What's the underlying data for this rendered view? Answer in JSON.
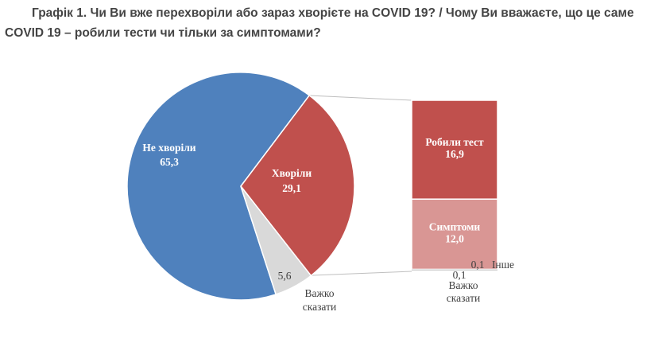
{
  "chart_data": {
    "type": "pie",
    "title": "Графік 1.  Чи Ви вже перехворіли або зараз хворієте на COVID 19? / Чому Ви вважаєте, що це саме COVID 19 – робили тести чи тільки за симптомами?",
    "categories": [
      "Не хворіли",
      "Хворіли",
      "Важко сказати"
    ],
    "values": [
      65.3,
      29.1,
      5.6
    ],
    "value_labels": [
      "65,3",
      "29,1",
      "5,6"
    ],
    "colors": [
      "#4f81bd",
      "#c0504d",
      "#d9d9d9"
    ],
    "breakdown": {
      "categories": [
        "Робили тест",
        "Симптоми",
        "Важко сказати",
        "Інше"
      ],
      "values": [
        16.9,
        12.0,
        0.1,
        0.1
      ],
      "value_labels": [
        "16,9",
        "12,0",
        "0,1",
        "0,1"
      ],
      "colors": [
        "#c0504d",
        "#d99694",
        "#d9d9d9",
        "#bfbfbf"
      ]
    }
  }
}
